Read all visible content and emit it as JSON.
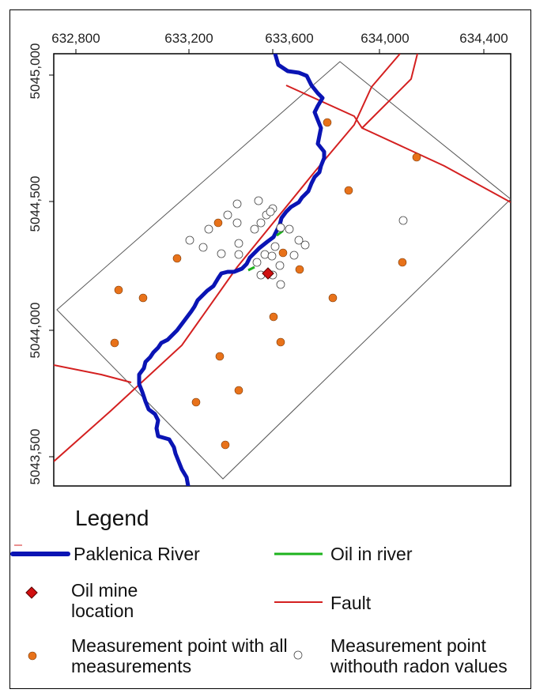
{
  "map": {
    "x_ticks": [
      "632,800",
      "633,200",
      "633,600",
      "634,000",
      "634,400"
    ],
    "y_ticks": [
      "5045,000",
      "5044,500",
      "5044,000",
      "5043,500"
    ],
    "colors": {
      "river": "#0a14b4",
      "oil": "#1db31d",
      "fault": "#d42020",
      "mine": "#d01010",
      "point_all": "#e8721a",
      "point_no_radon": "#ffffff",
      "boundary": "#444444"
    }
  },
  "legend": {
    "title": "Legend",
    "river": "Paklenica River",
    "oil": "Oil in river",
    "mine": "Oil mine location",
    "fault": "Fault",
    "point_all": "Measurement point with all measurements",
    "point_no_radon": "Measurement point withouth radon values"
  }
}
